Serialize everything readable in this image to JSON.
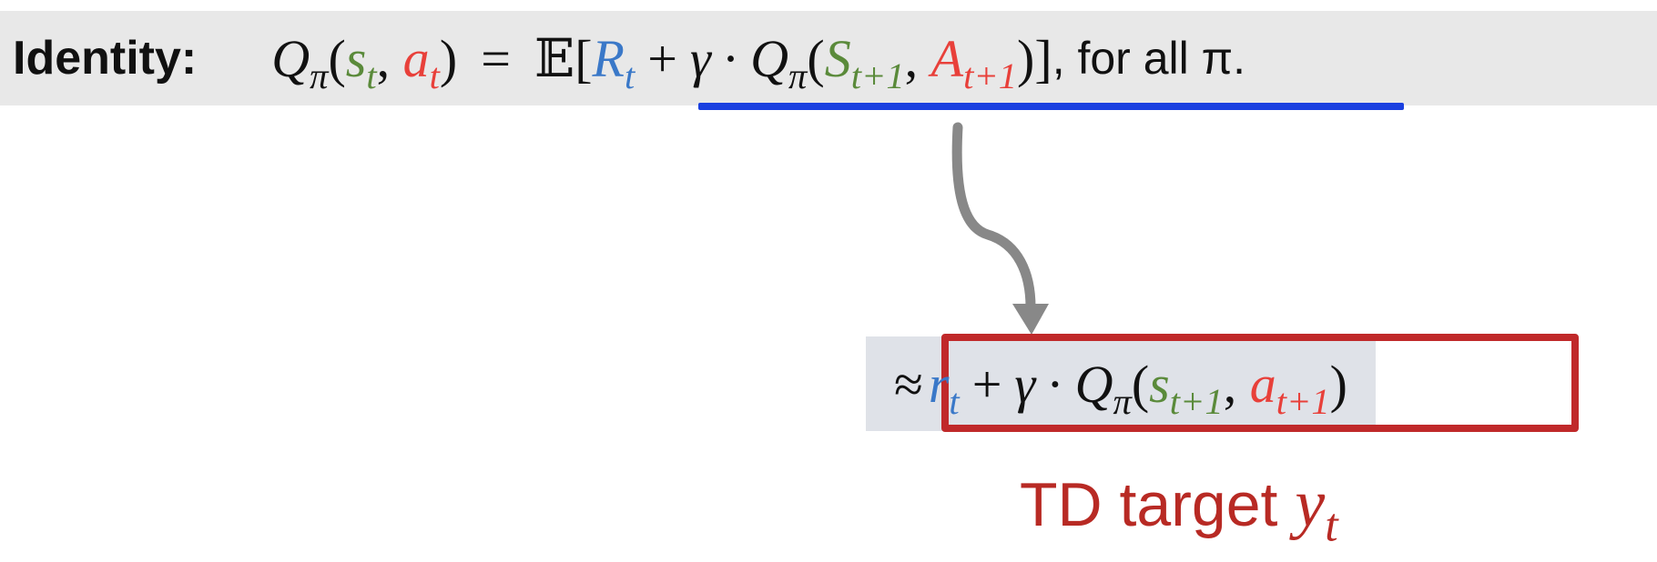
{
  "identity": {
    "label": "Identity:",
    "q": "Q",
    "pi": "π",
    "s": "s",
    "t": "t",
    "a": "a",
    "eq": "=",
    "E": "𝔼",
    "R": "R",
    "plus": "+",
    "gamma": "γ",
    "dot": "·",
    "S": "S",
    "A": "A",
    "t1": "t+1",
    "tail": ", for all π."
  },
  "approx": {
    "sym": "≈",
    "r": "r",
    "t": "t",
    "plus": "+",
    "gamma": "γ",
    "dot": "·",
    "q": "Q",
    "pi": "π",
    "s": "s",
    "a": "a",
    "t1": "t+1"
  },
  "caption": {
    "text": "TD target ",
    "y": "y",
    "t": "t"
  },
  "colors": {
    "state": "#5a8a3a",
    "action": "#e8403a",
    "reward": "#3a78c8",
    "underline": "#1a40e0",
    "box": "#c0292a",
    "arrow": "#888888"
  }
}
